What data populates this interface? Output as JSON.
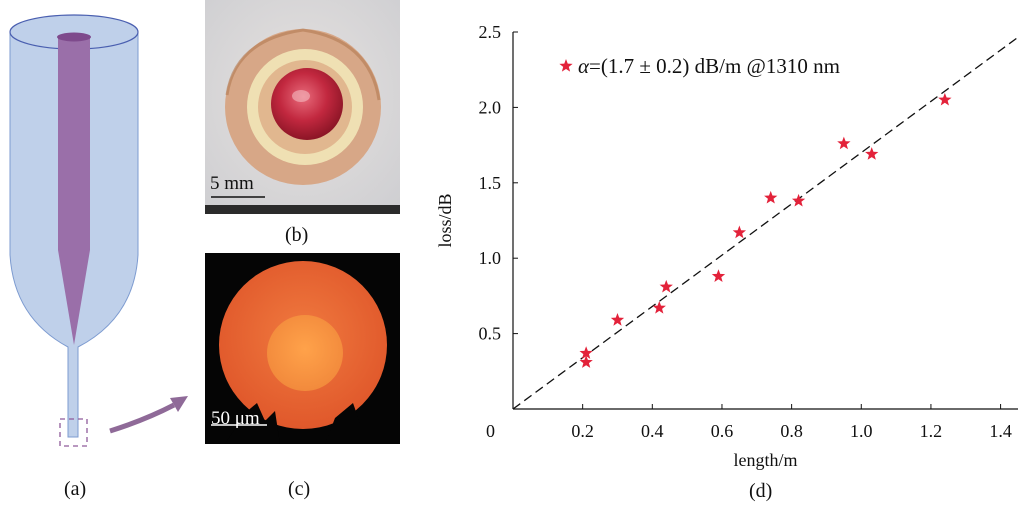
{
  "panels": {
    "a": {
      "label": "(a)"
    },
    "b": {
      "label": "(b)",
      "scale_bar": "5 mm"
    },
    "c": {
      "label": "(c)",
      "scale_bar": "50 μm"
    },
    "d": {
      "label": "(d)"
    }
  },
  "colors": {
    "cladding": "#bfd0ea",
    "core": "#9a6fa9",
    "arrow": "#8f6a98",
    "marker": "#e3223a"
  },
  "chart_data": {
    "type": "scatter",
    "xlabel": "length/m",
    "ylabel": "loss/dB",
    "xlim": [
      0,
      1.45
    ],
    "ylim": [
      0,
      2.5
    ],
    "xticks": [
      0.2,
      0.4,
      0.6,
      0.8,
      1.0,
      1.2,
      1.4
    ],
    "xtick_labels": [
      "0.2",
      "0.4",
      "0.6",
      "0.8",
      "1.0",
      "1.2",
      "1.4"
    ],
    "yticks": [
      0.5,
      1.0,
      1.5,
      2.0,
      2.5
    ],
    "ytick_labels": [
      "0.5",
      "1.0",
      "1.5",
      "2.0",
      "2.5"
    ],
    "origin_label": "0",
    "legend": {
      "symbol": "α",
      "text": "=(1.7 ± 0.2) dB/m @1310 nm",
      "placement": "top-left"
    },
    "series": [
      {
        "marker": "star",
        "points": [
          [
            0.21,
            0.37
          ],
          [
            0.21,
            0.31
          ],
          [
            0.3,
            0.59
          ],
          [
            0.42,
            0.67
          ],
          [
            0.44,
            0.81
          ],
          [
            0.59,
            0.88
          ],
          [
            0.65,
            1.17
          ],
          [
            0.74,
            1.4
          ],
          [
            0.82,
            1.38
          ],
          [
            0.95,
            1.76
          ],
          [
            1.03,
            1.69
          ],
          [
            1.24,
            2.05
          ]
        ]
      }
    ],
    "fit_line": {
      "style": "dashed",
      "points": [
        [
          0,
          0
        ],
        [
          1.45,
          2.465
        ]
      ]
    }
  }
}
